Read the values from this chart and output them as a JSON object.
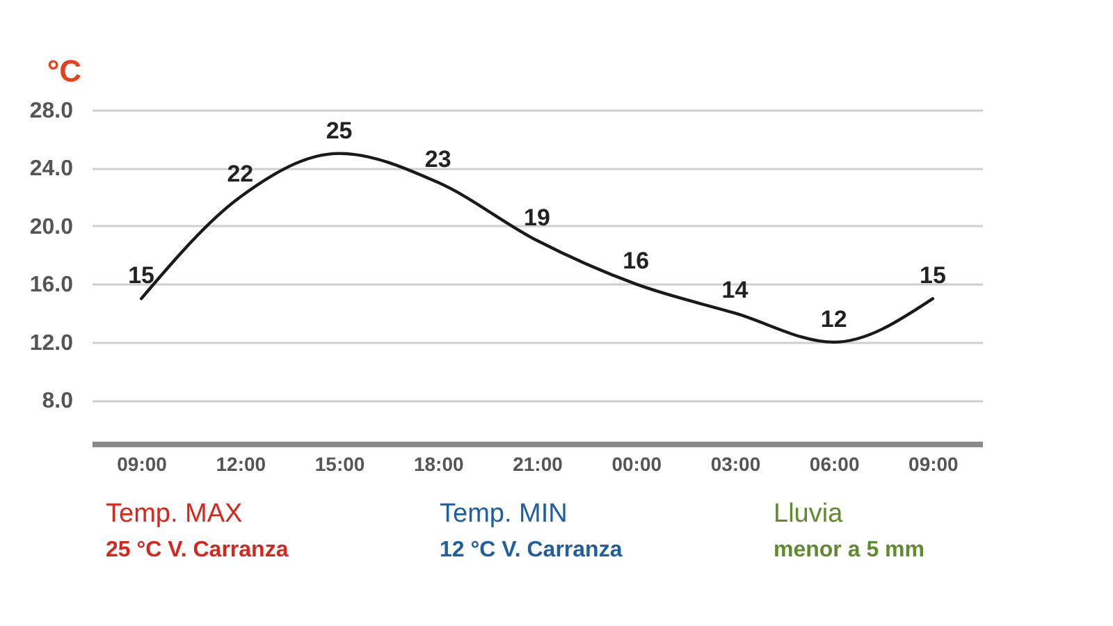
{
  "chart_data": {
    "type": "line",
    "ylabel": "°C",
    "categories": [
      "09:00",
      "12:00",
      "15:00",
      "18:00",
      "21:00",
      "00:00",
      "03:00",
      "06:00",
      "09:00"
    ],
    "values": [
      15,
      22,
      25,
      23,
      19,
      16,
      14,
      12,
      15
    ],
    "color": "#1a1a1a",
    "ylim": [
      5,
      28
    ],
    "yticks": [
      {
        "value": 8,
        "label": "8.0"
      },
      {
        "value": 12,
        "label": "12.0"
      },
      {
        "value": 16,
        "label": "16.0"
      },
      {
        "value": 20,
        "label": "20.0"
      },
      {
        "value": 24,
        "label": "24.0"
      },
      {
        "value": 28,
        "label": "28.0"
      }
    ],
    "grid": "y",
    "marker": "none",
    "line_style": "solid",
    "data_labels": true,
    "annotations": [
      "Temp. MAX",
      "25 °C V. Carranza",
      "Temp. MIN",
      "12 °C V. Carranza",
      "Lluvia",
      "menor a 5 mm"
    ]
  }
}
